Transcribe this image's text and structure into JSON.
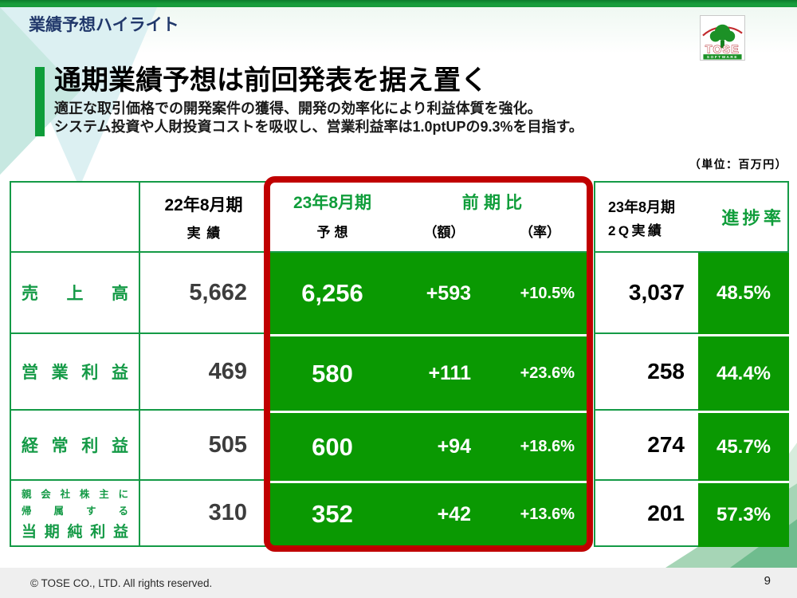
{
  "page_title": "業績予想ハイライト",
  "logo": {
    "name": "TOSE",
    "sub": "SOFTWARE"
  },
  "headline": {
    "title": "通期業績予想は前回発表を据え置く",
    "line1": "適正な取引価格での開発案件の獲得、開発の効率化により利益体質を強化。",
    "line2": "システム投資や人財投資コストを吸収し、営業利益率は1.0ptUPの9.3%を目指す。"
  },
  "unit_note": "（単位：百万円）",
  "table": {
    "header": {
      "fy22": "22年8月期",
      "fy22_sub": "実績",
      "fy23": "23年8月期",
      "fy23_sub": "予想",
      "yoy": "前期比",
      "yoy_amount": "（額）",
      "yoy_rate": "（率）",
      "q2": "23年8月期",
      "q2_sub": "2Q実績",
      "progress": "進捗率"
    },
    "rows": [
      {
        "label": "売上高",
        "fy22": "5,662",
        "fy23": "6,256",
        "yoy_amount": "+593",
        "yoy_rate": "+10.5%",
        "q2": "3,037",
        "progress": "48.5%"
      },
      {
        "label": "営業利益",
        "fy22": "469",
        "fy23": "580",
        "yoy_amount": "+111",
        "yoy_rate": "+23.6%",
        "q2": "258",
        "progress": "44.4%"
      },
      {
        "label": "経常利益",
        "fy22": "505",
        "fy23": "600",
        "yoy_amount": "+94",
        "yoy_rate": "+18.6%",
        "q2": "274",
        "progress": "45.7%"
      },
      {
        "label_line1": "親会社株主に",
        "label_line2": "帰属する",
        "label_line3": "当期純利益",
        "fy22": "310",
        "fy23": "352",
        "yoy_amount": "+42",
        "yoy_rate": "+13.6%",
        "q2": "201",
        "progress": "57.3%"
      }
    ]
  },
  "footer": {
    "copyright": "© TOSE CO., LTD. All rights reserved.",
    "page_number": "9"
  },
  "colors": {
    "accent_green": "#149a46",
    "cell_green": "#0a9902",
    "frame_red": "#c00000",
    "title_navy": "#21386b",
    "footer_gray": "#efefef"
  }
}
